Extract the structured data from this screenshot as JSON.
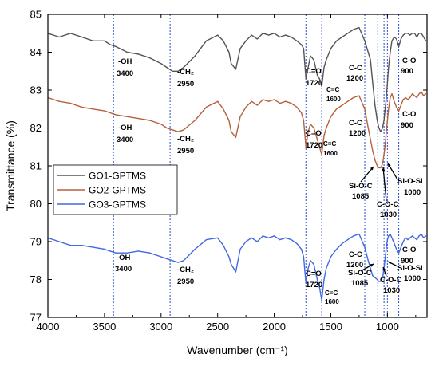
{
  "chart_data": {
    "type": "line",
    "xlabel": "Wavenumber (cm⁻¹)",
    "ylabel": "Transmittance (%)",
    "xlim": [
      4000,
      650
    ],
    "ylim": [
      77,
      85
    ],
    "x_reversed": true,
    "xticks": [
      4000,
      3500,
      3000,
      2500,
      2000,
      1500,
      1000
    ],
    "xtick_labels": [
      "4000",
      "3500",
      "3000",
      "2500",
      "2000",
      "1500",
      "1000"
    ],
    "yticks": [
      77,
      78,
      79,
      80,
      81,
      82,
      83,
      84,
      85
    ],
    "ytick_labels": [
      "77",
      "78",
      "79",
      "80",
      "81",
      "82",
      "83",
      "84",
      "85"
    ],
    "legend_position": "middle-left",
    "reference_lines": [
      3420,
      2920,
      1720,
      1580,
      1200,
      1085,
      1030,
      1000,
      900
    ],
    "series": [
      {
        "name": "GO1-GPTMS",
        "color": "#555555",
        "x": [
          4000,
          3900,
          3800,
          3700,
          3600,
          3500,
          3450,
          3400,
          3300,
          3200,
          3100,
          3000,
          2950,
          2900,
          2850,
          2800,
          2700,
          2600,
          2500,
          2450,
          2400,
          2380,
          2340,
          2300,
          2250,
          2200,
          2150,
          2100,
          2050,
          2000,
          1950,
          1900,
          1850,
          1800,
          1760,
          1740,
          1720,
          1700,
          1680,
          1650,
          1620,
          1600,
          1580,
          1560,
          1540,
          1500,
          1450,
          1400,
          1350,
          1300,
          1250,
          1200,
          1170,
          1150,
          1130,
          1110,
          1090,
          1075,
          1060,
          1050,
          1040,
          1030,
          1020,
          1010,
          1000,
          990,
          975,
          960,
          940,
          920,
          900,
          880,
          860,
          840,
          820,
          800,
          780,
          760,
          740,
          720,
          700,
          680,
          660
        ],
        "y": [
          84.5,
          84.4,
          84.5,
          84.4,
          84.3,
          84.3,
          84.2,
          84.15,
          84.0,
          83.95,
          83.85,
          83.7,
          83.6,
          83.5,
          83.5,
          83.6,
          83.9,
          84.3,
          84.45,
          84.3,
          84.0,
          83.7,
          83.55,
          84.1,
          84.3,
          84.45,
          84.35,
          84.5,
          84.45,
          84.5,
          84.4,
          84.45,
          84.4,
          84.3,
          84.2,
          84.1,
          83.3,
          83.6,
          83.9,
          83.8,
          83.4,
          83.3,
          83.1,
          83.6,
          83.8,
          84.1,
          84.3,
          84.4,
          84.5,
          84.6,
          84.65,
          84.3,
          84.0,
          83.8,
          83.2,
          82.6,
          82.2,
          82.0,
          81.9,
          81.95,
          82.05,
          82.2,
          82.5,
          82.8,
          83.2,
          83.6,
          84.0,
          84.3,
          84.4,
          84.35,
          84.15,
          84.35,
          84.45,
          84.5,
          84.5,
          84.45,
          84.5,
          84.5,
          84.4,
          84.5,
          84.5,
          84.4,
          84.3
        ]
      },
      {
        "name": "GO2-GPTMS",
        "color": "#b5613d",
        "x": [
          4000,
          3900,
          3800,
          3700,
          3600,
          3500,
          3450,
          3400,
          3300,
          3200,
          3100,
          3000,
          2950,
          2900,
          2850,
          2800,
          2700,
          2600,
          2500,
          2450,
          2400,
          2380,
          2340,
          2300,
          2250,
          2200,
          2150,
          2100,
          2050,
          2000,
          1950,
          1900,
          1850,
          1800,
          1760,
          1740,
          1720,
          1700,
          1680,
          1650,
          1620,
          1600,
          1580,
          1560,
          1540,
          1500,
          1450,
          1400,
          1350,
          1300,
          1250,
          1200,
          1170,
          1150,
          1130,
          1110,
          1090,
          1075,
          1060,
          1050,
          1040,
          1030,
          1020,
          1010,
          1000,
          990,
          975,
          960,
          940,
          920,
          900,
          880,
          860,
          840,
          820,
          800,
          780,
          760,
          740,
          720,
          700,
          680,
          660
        ],
        "y": [
          82.8,
          82.7,
          82.65,
          82.55,
          82.5,
          82.45,
          82.4,
          82.35,
          82.3,
          82.25,
          82.2,
          82.1,
          82.0,
          81.95,
          81.9,
          81.95,
          82.2,
          82.55,
          82.7,
          82.5,
          82.2,
          81.9,
          81.75,
          82.3,
          82.55,
          82.7,
          82.6,
          82.75,
          82.7,
          82.75,
          82.65,
          82.7,
          82.65,
          82.55,
          82.4,
          82.2,
          81.5,
          81.9,
          82.1,
          82.0,
          81.7,
          81.5,
          81.3,
          81.8,
          82.0,
          82.3,
          82.5,
          82.6,
          82.7,
          82.8,
          82.85,
          82.5,
          82.0,
          81.7,
          81.4,
          81.15,
          81.0,
          80.95,
          80.95,
          81.0,
          81.1,
          81.3,
          81.55,
          81.9,
          82.2,
          82.5,
          82.8,
          82.9,
          82.7,
          82.55,
          82.45,
          82.6,
          82.75,
          82.8,
          82.75,
          82.8,
          82.9,
          82.85,
          82.8,
          82.9,
          82.95,
          82.85,
          82.9
        ]
      },
      {
        "name": "GO3-GPTMS",
        "color": "#4169e1",
        "x": [
          4000,
          3900,
          3800,
          3700,
          3600,
          3500,
          3450,
          3400,
          3300,
          3200,
          3100,
          3000,
          2950,
          2900,
          2850,
          2800,
          2700,
          2600,
          2500,
          2450,
          2400,
          2380,
          2340,
          2300,
          2250,
          2200,
          2150,
          2100,
          2050,
          2000,
          1950,
          1900,
          1850,
          1800,
          1760,
          1740,
          1720,
          1700,
          1680,
          1650,
          1620,
          1600,
          1580,
          1560,
          1540,
          1500,
          1450,
          1400,
          1350,
          1300,
          1250,
          1200,
          1170,
          1150,
          1130,
          1110,
          1090,
          1075,
          1060,
          1050,
          1040,
          1030,
          1020,
          1010,
          1000,
          990,
          975,
          960,
          940,
          920,
          900,
          880,
          860,
          840,
          820,
          800,
          780,
          760,
          740,
          720,
          700,
          680,
          660
        ],
        "y": [
          79.1,
          79.0,
          78.9,
          78.9,
          78.85,
          78.8,
          78.75,
          78.7,
          78.7,
          78.75,
          78.7,
          78.6,
          78.55,
          78.5,
          78.45,
          78.5,
          78.8,
          79.05,
          79.1,
          78.9,
          78.6,
          78.4,
          78.2,
          78.8,
          79.0,
          79.1,
          79.0,
          79.15,
          79.1,
          79.15,
          79.05,
          79.1,
          79.05,
          78.95,
          78.8,
          78.6,
          77.9,
          78.3,
          78.5,
          78.4,
          78.0,
          77.8,
          77.45,
          78.0,
          78.3,
          78.6,
          78.8,
          78.95,
          79.05,
          79.15,
          79.2,
          78.85,
          78.5,
          78.3,
          78.1,
          78.05,
          78.0,
          77.95,
          77.95,
          78.0,
          78.1,
          78.3,
          78.55,
          78.85,
          79.05,
          79.15,
          79.2,
          79.1,
          78.95,
          78.8,
          78.7,
          78.85,
          79.0,
          79.1,
          79.05,
          79.1,
          79.15,
          79.1,
          79.05,
          79.15,
          79.2,
          79.1,
          79.15
        ]
      }
    ],
    "annotations": [
      {
        "text": "-OH",
        "id": "oh-1"
      },
      {
        "text": "3400",
        "id": "oh-1-wn"
      },
      {
        "text": "-CH₂",
        "id": "ch2-1"
      },
      {
        "text": "2950",
        "id": "ch2-1-wn"
      },
      {
        "text": "C=O",
        "id": "co-1"
      },
      {
        "text": "1720",
        "id": "co-1-wn"
      },
      {
        "text": "C=C",
        "id": "cc-1"
      },
      {
        "text": "1600",
        "id": "cc-1-wn"
      },
      {
        "text": "C-C",
        "id": "c-c-1"
      },
      {
        "text": "1200",
        "id": "c-c-1-wn"
      },
      {
        "text": "C-O",
        "id": "c-o-1"
      },
      {
        "text": "900",
        "id": "c-o-1-wn"
      },
      {
        "text": "-OH",
        "id": "oh-2"
      },
      {
        "text": "3400",
        "id": "oh-2-wn"
      },
      {
        "text": "-CH₂",
        "id": "ch2-2"
      },
      {
        "text": "2950",
        "id": "ch2-2-wn"
      },
      {
        "text": "C=O",
        "id": "co-2"
      },
      {
        "text": "1720",
        "id": "co-2-wn"
      },
      {
        "text": "C=C",
        "id": "cc-2"
      },
      {
        "text": "1600",
        "id": "cc-2-wn"
      },
      {
        "text": "C-C",
        "id": "c-c-2"
      },
      {
        "text": "1200",
        "id": "c-c-2-wn"
      },
      {
        "text": "C-O",
        "id": "c-o-2"
      },
      {
        "text": "900",
        "id": "c-o-2-wn"
      },
      {
        "text": "Si-O-C",
        "id": "sioc-2"
      },
      {
        "text": "1085",
        "id": "sioc-2-wn"
      },
      {
        "text": "C-O-C",
        "id": "coc-2"
      },
      {
        "text": "1030",
        "id": "coc-2-wn"
      },
      {
        "text": "Si-O-Si",
        "id": "siosi-2"
      },
      {
        "text": "1000",
        "id": "siosi-2-wn"
      },
      {
        "text": "-OH",
        "id": "oh-3"
      },
      {
        "text": "3400",
        "id": "oh-3-wn"
      },
      {
        "text": "-CH₂",
        "id": "ch2-3"
      },
      {
        "text": "2950",
        "id": "ch2-3-wn"
      },
      {
        "text": "C=O",
        "id": "co-3"
      },
      {
        "text": "1720",
        "id": "co-3-wn"
      },
      {
        "text": "C=C",
        "id": "cc-3"
      },
      {
        "text": "1600",
        "id": "cc-3-wn"
      },
      {
        "text": "C-C",
        "id": "c-c-3"
      },
      {
        "text": "1200",
        "id": "c-c-3-wn"
      },
      {
        "text": "C-O",
        "id": "c-o-3"
      },
      {
        "text": "900",
        "id": "c-o-3-wn"
      },
      {
        "text": "Si-O-C",
        "id": "sioc-3"
      },
      {
        "text": "1085",
        "id": "sioc-3-wn"
      },
      {
        "text": "C-O-C",
        "id": "coc-3"
      },
      {
        "text": "1030",
        "id": "coc-3-wn"
      },
      {
        "text": "Si-O-Si",
        "id": "siosi-3"
      },
      {
        "text": "1000",
        "id": "siosi-3-wn"
      }
    ]
  }
}
